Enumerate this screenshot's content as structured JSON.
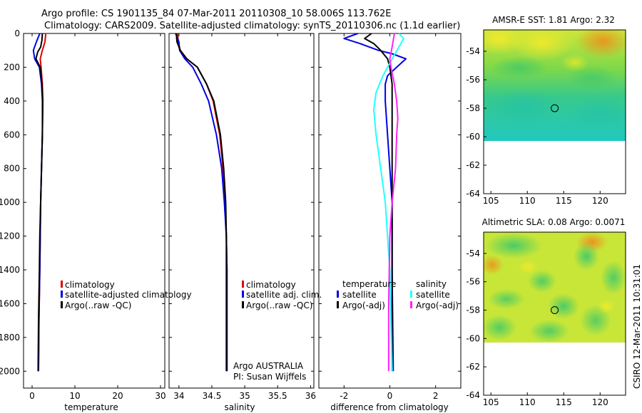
{
  "header": {
    "title_line1": "Argo profile: CS 1901135_84 07-Mar-2011 20110308_10 58.006S 113.762E",
    "title_line2": "Climatology: CARS2009. Satellite-adjusted climatology: synTS_20110306.nc (1.1d earlier)"
  },
  "watermark": "CSIRO 12-Mar-2011 10:31:01",
  "colors": {
    "red": "#e00000",
    "blue": "#0000e6",
    "black": "#000000",
    "cyan": "#22ffff",
    "magenta": "#ff22ff"
  },
  "chart_data": [
    {
      "type": "line",
      "id": "temperature",
      "xlabel": "temperature",
      "ylabel": "",
      "xlim": [
        -2,
        31
      ],
      "ylim": [
        2100,
        0
      ],
      "xticks": [
        "0",
        "10",
        "20",
        "30"
      ],
      "xtick_values": [
        0,
        10,
        20,
        30
      ],
      "yticks": [
        "0",
        "200",
        "400",
        "600",
        "800",
        "1000",
        "1200",
        "1400",
        "1600",
        "1800",
        "2000"
      ],
      "ytick_values": [
        0,
        200,
        400,
        600,
        800,
        1000,
        1200,
        1400,
        1600,
        1800,
        2000
      ],
      "legend": [
        "climatology",
        "satellite-adjusted climatology",
        "Argo(..raw -QC)"
      ],
      "series": [
        {
          "name": "climatology",
          "color": "red",
          "x": [
            3.2,
            3.0,
            2.4,
            1.9,
            2.1,
            2.4,
            2.5,
            2.4,
            2.2,
            2.0,
            1.9,
            1.8,
            1.6,
            1.5
          ],
          "y": [
            0,
            50,
            100,
            150,
            200,
            300,
            400,
            600,
            800,
            1000,
            1200,
            1400,
            1700,
            2000
          ]
        },
        {
          "name": "satellite-adjusted climatology",
          "color": "blue",
          "x": [
            1.8,
            1.0,
            0.3,
            0.6,
            1.7,
            2.2,
            2.4,
            2.4,
            2.2,
            2.0,
            1.9,
            1.8,
            1.6,
            1.5
          ],
          "y": [
            0,
            50,
            100,
            150,
            200,
            300,
            400,
            600,
            800,
            1000,
            1200,
            1400,
            1700,
            2000
          ]
        },
        {
          "name": "Argo(..raw -QC)",
          "color": "black",
          "x": [
            2.4,
            2.3,
            2.0,
            1.3,
            0.9,
            1.9,
            2.3,
            2.5,
            2.4,
            2.2,
            2.0,
            1.8,
            1.7,
            1.5,
            1.4
          ],
          "y": [
            0,
            40,
            80,
            110,
            150,
            200,
            300,
            400,
            600,
            800,
            1000,
            1200,
            1400,
            1700,
            2000
          ]
        }
      ]
    },
    {
      "type": "line",
      "id": "salinity",
      "xlabel": "salinity",
      "xlim": [
        33.85,
        36.05
      ],
      "ylim": [
        2100,
        0
      ],
      "xticks": [
        "34",
        "34.5",
        "35",
        "35.5",
        "36"
      ],
      "xtick_values": [
        34,
        34.5,
        35,
        35.5,
        36
      ],
      "legend": [
        "climatology",
        "satellite adj. clim.",
        "Argo(..raw -QC)"
      ],
      "annotation": [
        "Argo AUSTRALIA",
        "PI: Susan Wijffels"
      ],
      "series": [
        {
          "name": "climatology",
          "color": "red",
          "x": [
            33.98,
            33.99,
            34.02,
            34.12,
            34.28,
            34.42,
            34.52,
            34.62,
            34.67,
            34.7,
            34.72,
            34.73,
            34.73,
            34.73
          ],
          "y": [
            0,
            50,
            100,
            150,
            200,
            300,
            400,
            600,
            800,
            1000,
            1200,
            1400,
            1700,
            2000
          ]
        },
        {
          "name": "satellite adj. clim.",
          "color": "blue",
          "x": [
            33.95,
            34.0,
            34.01,
            34.09,
            34.21,
            34.34,
            34.45,
            34.57,
            34.65,
            34.69,
            34.72,
            34.73,
            34.73,
            34.73
          ],
          "y": [
            0,
            50,
            100,
            150,
            200,
            300,
            400,
            600,
            800,
            1000,
            1200,
            1400,
            1700,
            2000
          ]
        },
        {
          "name": "Argo(..raw -QC)",
          "color": "black",
          "x": [
            33.96,
            33.97,
            34.02,
            34.12,
            34.28,
            34.42,
            34.53,
            34.63,
            34.68,
            34.71,
            34.72,
            34.72,
            34.72,
            34.72
          ],
          "y": [
            0,
            50,
            100,
            150,
            200,
            300,
            400,
            600,
            800,
            1000,
            1200,
            1400,
            1700,
            2000
          ]
        }
      ]
    },
    {
      "type": "line",
      "id": "difference",
      "xlabel": "difference from climatology",
      "xlim": [
        -3.1,
        3.1
      ],
      "ylim": [
        2100,
        0
      ],
      "xticks": [
        "-2",
        "0",
        "2"
      ],
      "xtick_values": [
        -2,
        0,
        2
      ],
      "legend_groups": [
        {
          "title": "temperature",
          "items": [
            "satellite",
            "Argo(-adj)"
          ]
        },
        {
          "title": "salinity",
          "items": [
            "satellite",
            "Argo(-adj)"
          ]
        }
      ],
      "series": [
        {
          "name": "temperature satellite",
          "color": "blue",
          "x": [
            -1.4,
            -2.0,
            -1.3,
            -0.5,
            0.1,
            0.7,
            0.3,
            -0.1,
            -0.2,
            -0.2,
            -0.1,
            0.0,
            0.1,
            0.1,
            0.15
          ],
          "y": [
            0,
            30,
            60,
            100,
            120,
            150,
            200,
            250,
            300,
            400,
            600,
            800,
            1000,
            1400,
            2000
          ]
        },
        {
          "name": "temperature Argo(-adj)",
          "color": "black",
          "x": [
            -0.8,
            -1.1,
            -0.7,
            -0.4,
            -0.1,
            0.0,
            0.1,
            0.1,
            0.1,
            0.1,
            0.1,
            0.1,
            0.1,
            0.1
          ],
          "y": [
            0,
            30,
            60,
            100,
            150,
            200,
            300,
            400,
            600,
            800,
            1000,
            1200,
            1600,
            2000
          ]
        },
        {
          "name": "salinity satellite",
          "color": "cyan",
          "x": [
            0.4,
            0.6,
            0.4,
            0.1,
            -0.3,
            -0.6,
            -0.7,
            -0.6,
            -0.4,
            -0.2,
            -0.1,
            0.0,
            0.05,
            0.1
          ],
          "y": [
            0,
            30,
            80,
            150,
            250,
            350,
            450,
            600,
            800,
            1000,
            1200,
            1400,
            1700,
            2000
          ]
        },
        {
          "name": "salinity Argo(-adj)",
          "color": "magenta",
          "x": [
            0.2,
            0.1,
            0.0,
            0.05,
            0.2,
            0.3,
            0.35,
            0.3,
            0.25,
            0.1,
            0.0,
            -0.05,
            -0.05
          ],
          "y": [
            0,
            80,
            150,
            200,
            300,
            400,
            500,
            600,
            800,
            1000,
            1200,
            1600,
            2000
          ]
        }
      ]
    },
    {
      "type": "heatmap",
      "id": "amsre_sst",
      "title": "AMSR-E SST: 1.81 Argo: 2.32",
      "xlim": [
        104,
        123.5
      ],
      "ylim": [
        -64,
        -52.5
      ],
      "xticks": [
        "105",
        "110",
        "115",
        "120"
      ],
      "xtick_values": [
        105,
        110,
        115,
        120
      ],
      "yticks": [
        "-54",
        "-56",
        "-58",
        "-60",
        "-62",
        "-64"
      ],
      "ytick_values": [
        -54,
        -56,
        -58,
        -60,
        -62,
        -64
      ],
      "data_extent_lat": [
        -60,
        -52.5
      ],
      "marker": {
        "lon": 113.76,
        "lat": -58.0
      }
    },
    {
      "type": "heatmap",
      "id": "altimetric_sla",
      "title": "Altimetric SLA: 0.08 Argo: 0.0071",
      "xlim": [
        104,
        123.5
      ],
      "ylim": [
        -64,
        -52.5
      ],
      "xticks": [
        "105",
        "110",
        "115",
        "120"
      ],
      "xtick_values": [
        105,
        110,
        115,
        120
      ],
      "yticks": [
        "-54",
        "-56",
        "-58",
        "-60",
        "-62",
        "-64"
      ],
      "ytick_values": [
        -54,
        -56,
        -58,
        -60,
        -62,
        -64
      ],
      "data_extent_lat": [
        -60,
        -52.5
      ],
      "marker": {
        "lon": 113.76,
        "lat": -58.0
      }
    }
  ]
}
